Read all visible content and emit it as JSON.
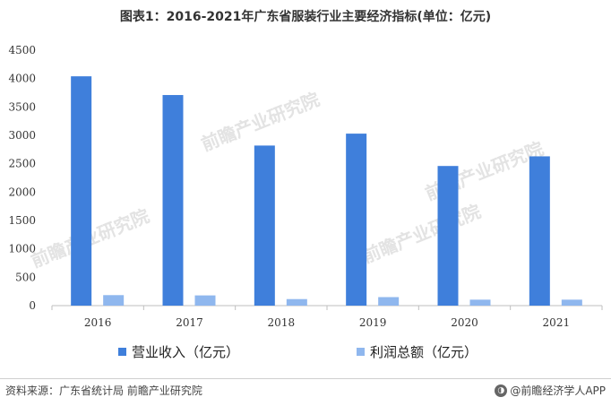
{
  "title": "图表1：2016-2021年广东省服装行业主要经济指标(单位：亿元)",
  "chart_data": {
    "type": "bar",
    "categories": [
      "2016",
      "2017",
      "2018",
      "2019",
      "2020",
      "2021"
    ],
    "series": [
      {
        "name": "营业收入（亿元）",
        "color": "#3f7fdb",
        "values": [
          4040,
          3710,
          2820,
          3030,
          2460,
          2630
        ]
      },
      {
        "name": "利润总额（亿元）",
        "color": "#8fb7ee",
        "values": [
          185,
          180,
          115,
          150,
          105,
          105
        ]
      }
    ],
    "ylim": [
      0,
      4500
    ],
    "yticks": [
      "0",
      "500",
      "1000",
      "1500",
      "2000",
      "2500",
      "3000",
      "3500",
      "4000",
      "4500"
    ],
    "grid": false,
    "legend_position": "bottom"
  },
  "watermark_text": "前瞻产业研究院",
  "footer": {
    "source": "资料来源：广东省统计局 前瞻产业研究院",
    "brand": "@前瞻经济学人APP",
    "brand_icon": "qianzhan-logo-icon"
  }
}
